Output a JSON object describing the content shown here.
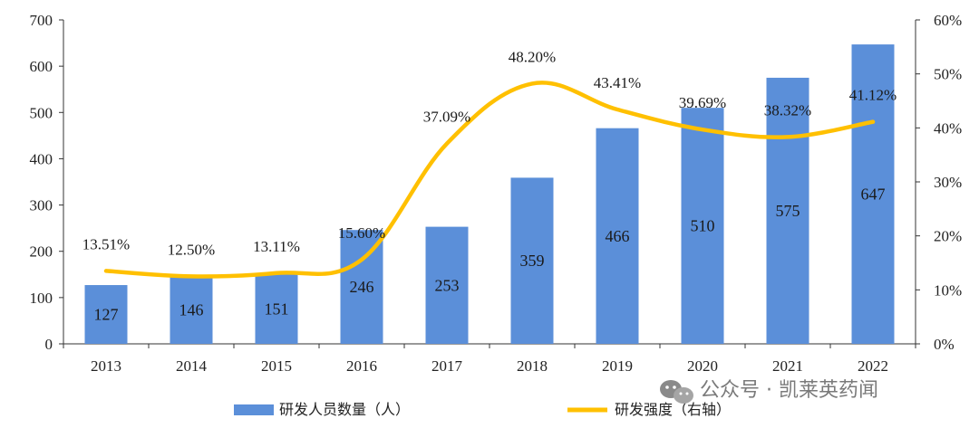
{
  "chart_data": {
    "type": "bar",
    "categories": [
      "2013",
      "2014",
      "2015",
      "2016",
      "2017",
      "2018",
      "2019",
      "2020",
      "2021",
      "2022"
    ],
    "series": [
      {
        "name": "研发人员数量（人）",
        "type": "bar",
        "axis": "left",
        "color": "#5b8fd9",
        "values": [
          127,
          146,
          151,
          246,
          253,
          359,
          466,
          510,
          575,
          647
        ],
        "labels": [
          "127",
          "146",
          "151",
          "246",
          "253",
          "359",
          "466",
          "510",
          "575",
          "647"
        ]
      },
      {
        "name": "研发强度（右轴）",
        "type": "line",
        "axis": "right",
        "color": "#ffc000",
        "values": [
          13.51,
          12.5,
          13.11,
          15.6,
          37.09,
          48.2,
          43.41,
          39.69,
          38.32,
          41.12
        ],
        "labels": [
          "13.51%",
          "12.50%",
          "13.11%",
          "15.60%",
          "37.09%",
          "48.20%",
          "43.41%",
          "39.69%",
          "38.32%",
          "41.12%"
        ]
      }
    ],
    "y_left": {
      "lim": [
        0,
        700
      ],
      "ticks": [
        "0",
        "100",
        "200",
        "300",
        "400",
        "500",
        "600",
        "700"
      ]
    },
    "y_right": {
      "lim": [
        0,
        60
      ],
      "ticks": [
        "0%",
        "10%",
        "20%",
        "30%",
        "40%",
        "50%",
        "60%"
      ]
    },
    "grid": false,
    "legend_position": "bottom"
  },
  "watermark": {
    "text": "公众号 · 凯莱英药闻",
    "icon": "wechat-icon"
  }
}
